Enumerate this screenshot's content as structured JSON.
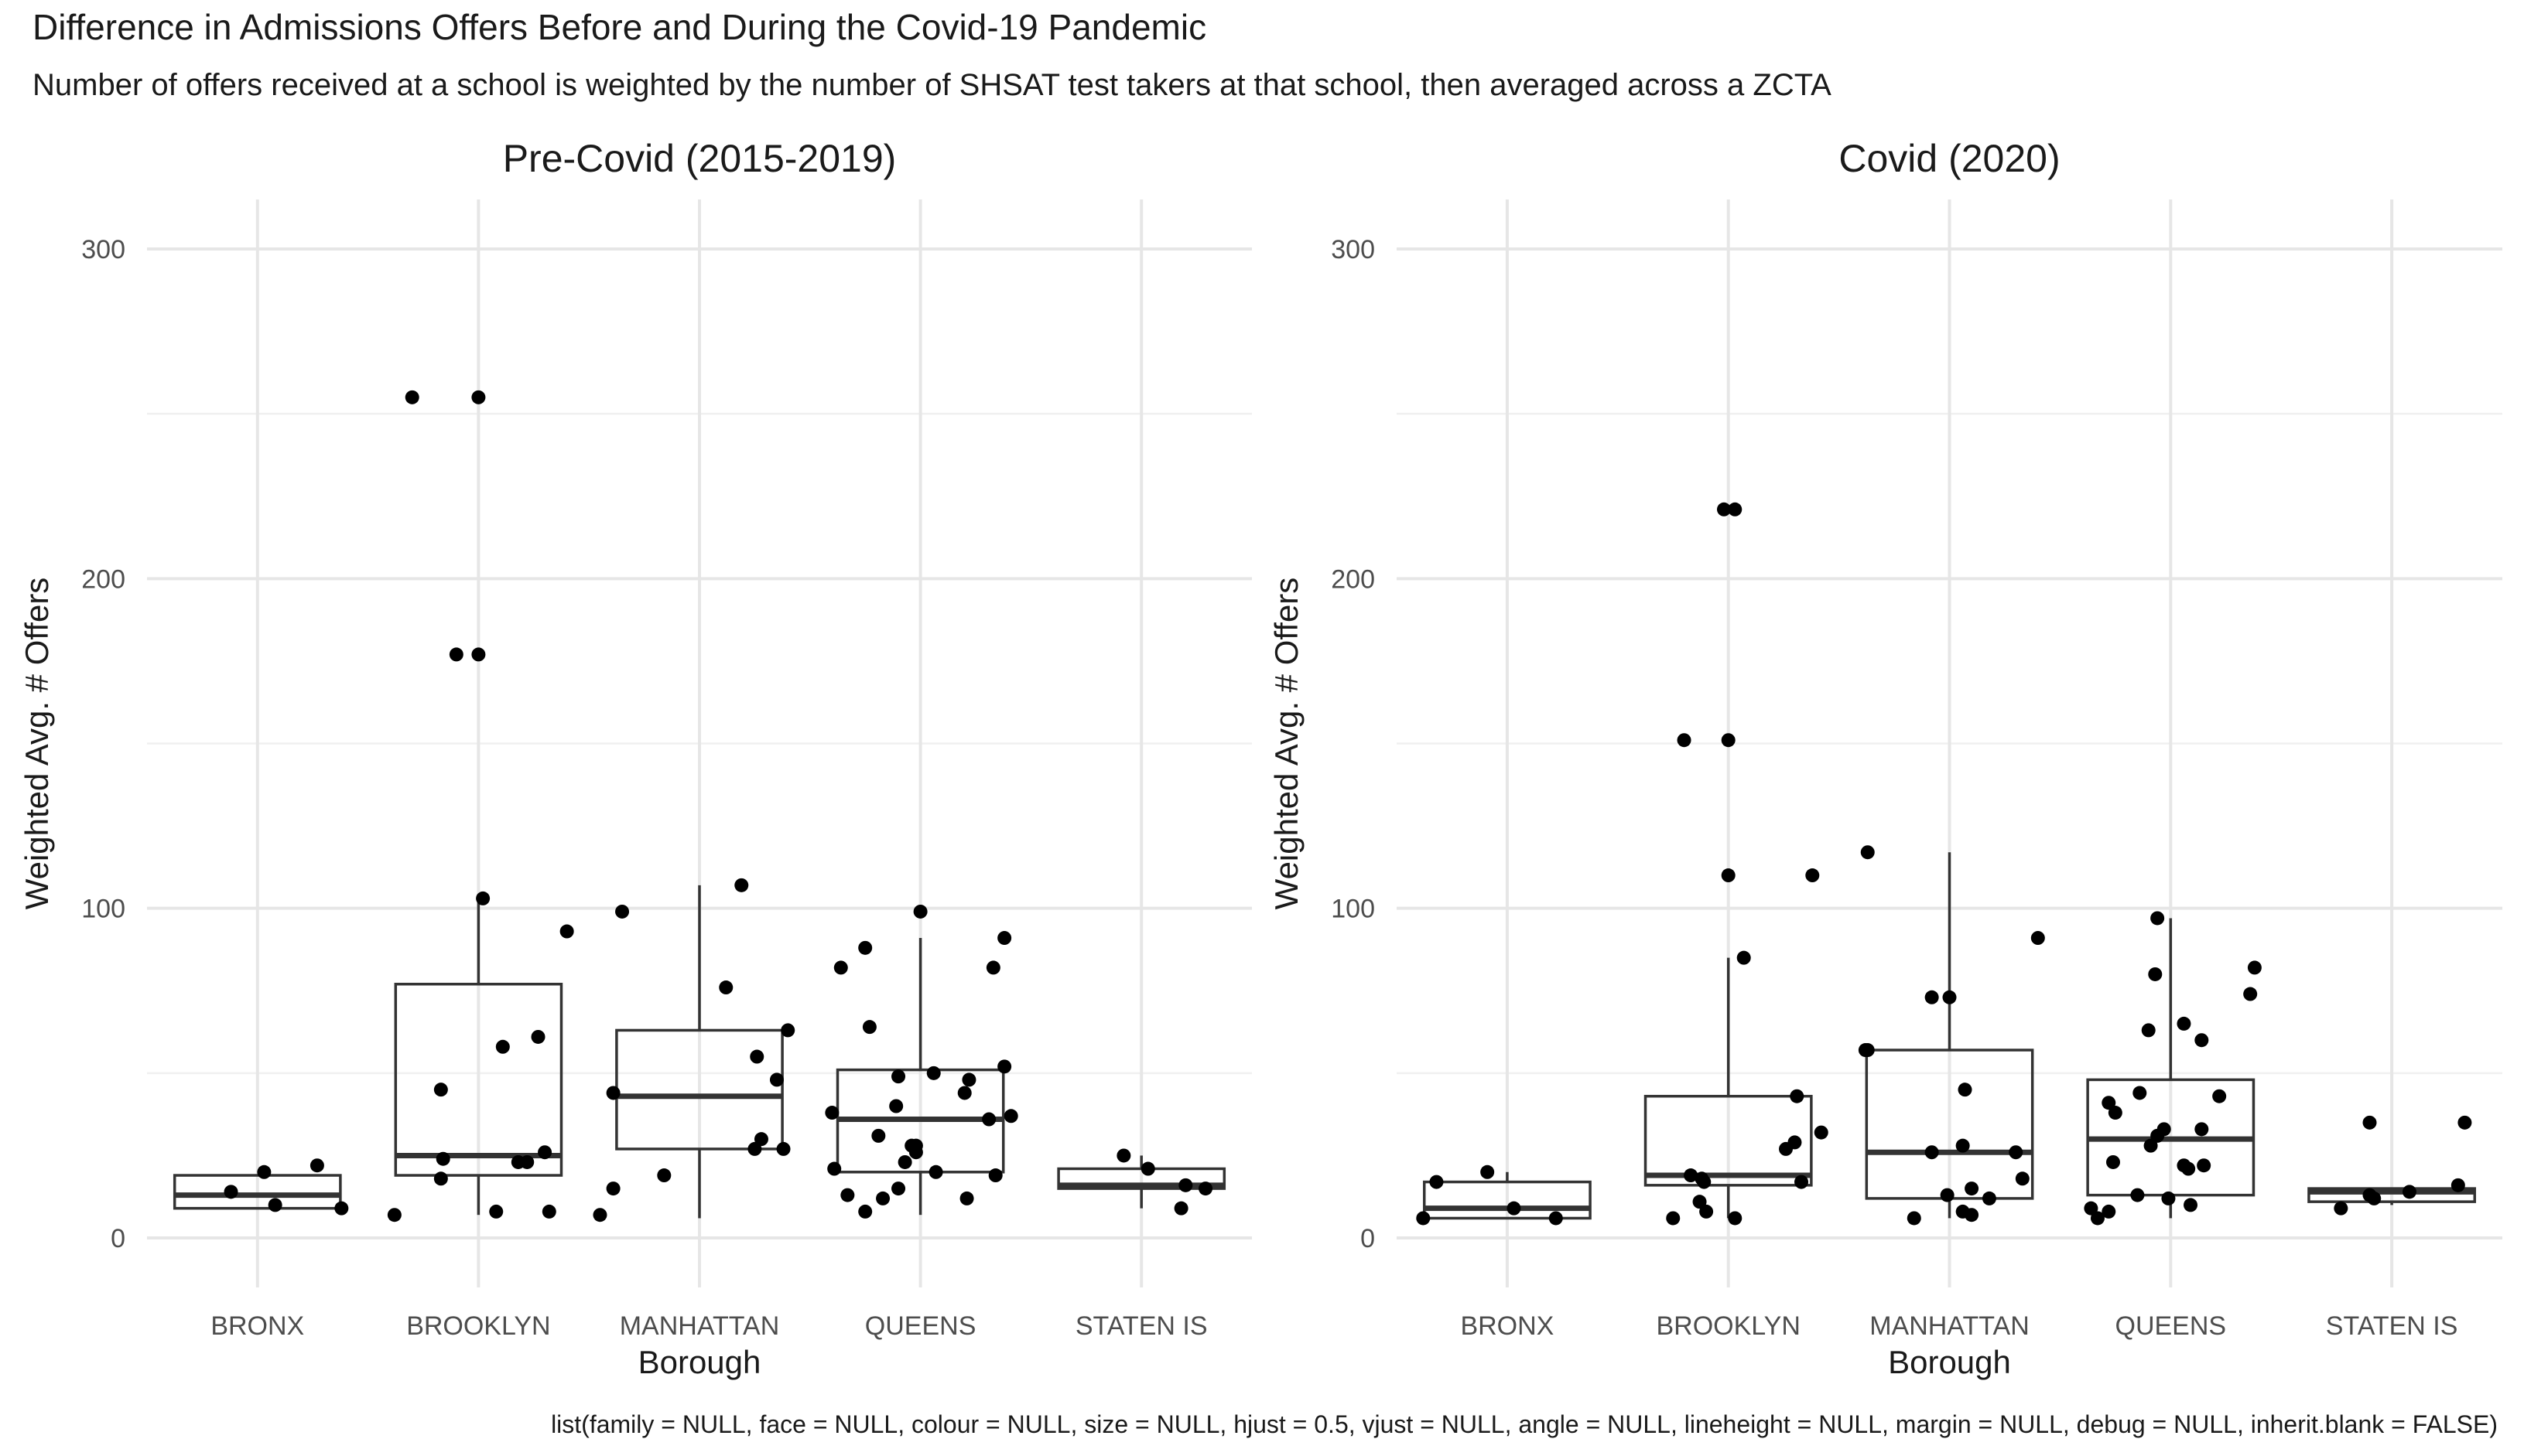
{
  "title": "Difference in Admissions Offers Before and During the Covid-19 Pandemic",
  "subtitle": "Number of offers received at a school is weighted by the number of SHSAT test takers at that school, then averaged across a ZCTA",
  "caption": "list(family = NULL, face = NULL, colour = NULL, size = NULL, hjust = 0.5, vjust = NULL, angle = NULL, lineheight = NULL, margin = NULL, debug = NULL, inherit.blank = FALSE)",
  "colors": {
    "points": "#000000",
    "box": "#333333",
    "grid": "#e6e6e6"
  },
  "chart_data": [
    {
      "type": "boxplot",
      "facet": "Pre-Covid (2015-2019)",
      "xlabel": "Borough",
      "ylabel": "Weighted Avg. # Offers",
      "categories": [
        "BRONX",
        "BROOKLYN",
        "MANHATTAN",
        "QUEENS",
        "STATEN IS"
      ],
      "ylim": [
        -15,
        315
      ],
      "yticks": [
        0,
        100,
        200,
        300
      ],
      "ytick_labels": [
        "0",
        "100",
        "200",
        "300"
      ],
      "grid": true,
      "boxes": [
        {
          "category": "BRONX",
          "lower_whisker": 9,
          "q1": 9,
          "median": 13,
          "q3": 19,
          "upper_whisker": 19
        },
        {
          "category": "BROOKLYN",
          "lower_whisker": 7,
          "q1": 19,
          "median": 25,
          "q3": 77,
          "upper_whisker": 103
        },
        {
          "category": "MANHATTAN",
          "lower_whisker": 6,
          "q1": 27,
          "median": 43,
          "q3": 63,
          "upper_whisker": 107
        },
        {
          "category": "QUEENS",
          "lower_whisker": 7,
          "q1": 20,
          "median": 36,
          "q3": 51,
          "upper_whisker": 91
        },
        {
          "category": "STATEN IS",
          "lower_whisker": 9,
          "q1": 15,
          "median": 16,
          "q3": 21,
          "upper_whisker": 25
        }
      ],
      "points": [
        {
          "category": "BRONX",
          "values": [
            20,
            14,
            10,
            22,
            9
          ],
          "jitter": [
            0.03,
            -0.12,
            0.08,
            0.27,
            0.38
          ]
        },
        {
          "category": "BROOKLYN",
          "values": [
            255,
            255,
            177,
            177,
            103,
            93,
            61,
            58,
            45,
            26,
            24,
            23,
            23,
            18,
            8,
            8,
            7
          ],
          "jitter": [
            -0.3,
            0.0,
            -0.1,
            0.0,
            0.02,
            0.4,
            0.27,
            0.11,
            -0.17,
            0.3,
            -0.16,
            0.18,
            0.22,
            -0.17,
            0.08,
            0.32,
            -0.38
          ]
        },
        {
          "category": "MANHATTAN",
          "values": [
            107,
            99,
            76,
            63,
            55,
            48,
            44,
            30,
            27,
            27,
            19,
            15,
            7
          ],
          "jitter": [
            0.19,
            -0.35,
            0.12,
            0.4,
            0.26,
            0.35,
            -0.39,
            0.28,
            0.25,
            0.38,
            -0.16,
            -0.39,
            -0.45
          ]
        },
        {
          "category": "QUEENS",
          "values": [
            99,
            91,
            88,
            82,
            82,
            64,
            52,
            50,
            49,
            48,
            44,
            40,
            38,
            37,
            36,
            31,
            28,
            28,
            26,
            23,
            21,
            20,
            19,
            15,
            13,
            12,
            12,
            8
          ],
          "jitter": [
            0.0,
            0.38,
            -0.25,
            -0.36,
            0.33,
            -0.23,
            0.38,
            0.06,
            -0.1,
            0.22,
            0.2,
            -0.11,
            -0.4,
            0.41,
            0.31,
            -0.19,
            -0.04,
            -0.02,
            -0.02,
            -0.07,
            -0.39,
            0.07,
            0.34,
            -0.1,
            -0.33,
            -0.17,
            0.21,
            -0.25
          ]
        },
        {
          "category": "STATEN IS",
          "values": [
            25,
            21,
            16,
            15,
            9
          ],
          "jitter": [
            -0.08,
            0.03,
            0.2,
            0.29,
            0.18
          ]
        }
      ]
    },
    {
      "type": "boxplot",
      "facet": "Covid (2020)",
      "xlabel": "Borough",
      "ylabel": "Weighted Avg. # Offers",
      "categories": [
        "BRONX",
        "BROOKLYN",
        "MANHATTAN",
        "QUEENS",
        "STATEN IS"
      ],
      "ylim": [
        -15,
        315
      ],
      "yticks": [
        0,
        100,
        200,
        300
      ],
      "ytick_labels": [
        "0",
        "100",
        "200",
        "300"
      ],
      "grid": true,
      "boxes": [
        {
          "category": "BRONX",
          "lower_whisker": 6,
          "q1": 6,
          "median": 9,
          "q3": 17,
          "upper_whisker": 20
        },
        {
          "category": "BROOKLYN",
          "lower_whisker": 6,
          "q1": 16,
          "median": 19,
          "q3": 43,
          "upper_whisker": 85
        },
        {
          "category": "MANHATTAN",
          "lower_whisker": 6,
          "q1": 12,
          "median": 26,
          "q3": 57,
          "upper_whisker": 117
        },
        {
          "category": "QUEENS",
          "lower_whisker": 6,
          "q1": 13,
          "median": 30,
          "q3": 48,
          "upper_whisker": 97
        },
        {
          "category": "STATEN IS",
          "lower_whisker": 10,
          "q1": 11,
          "median": 14,
          "q3": 15,
          "upper_whisker": 15
        }
      ],
      "points": [
        {
          "category": "BRONX",
          "values": [
            20,
            17,
            9,
            6,
            6
          ],
          "jitter": [
            -0.09,
            -0.32,
            0.03,
            0.22,
            -0.38
          ]
        },
        {
          "category": "BROOKLYN",
          "values": [
            221,
            221,
            151,
            151,
            110,
            110,
            85,
            43,
            32,
            29,
            27,
            19,
            18,
            17,
            17,
            11,
            8,
            6,
            6
          ],
          "jitter": [
            -0.02,
            0.03,
            -0.2,
            0.0,
            0.0,
            0.38,
            0.07,
            0.31,
            0.42,
            0.3,
            0.26,
            -0.17,
            -0.12,
            0.33,
            -0.11,
            -0.13,
            -0.1,
            -0.25,
            0.03
          ]
        },
        {
          "category": "MANHATTAN",
          "values": [
            117,
            91,
            73,
            73,
            57,
            57,
            45,
            28,
            26,
            26,
            18,
            15,
            13,
            12,
            8,
            7,
            6
          ],
          "jitter": [
            -0.37,
            0.4,
            0.0,
            -0.08,
            -0.37,
            -0.38,
            0.07,
            0.06,
            -0.08,
            0.3,
            0.33,
            0.1,
            -0.01,
            0.18,
            0.06,
            0.1,
            -0.16
          ]
        },
        {
          "category": "QUEENS",
          "values": [
            97,
            82,
            80,
            74,
            65,
            63,
            60,
            44,
            43,
            41,
            38,
            33,
            33,
            31,
            28,
            23,
            22,
            22,
            21,
            13,
            12,
            10,
            9,
            8,
            6
          ],
          "jitter": [
            -0.06,
            0.38,
            -0.07,
            0.36,
            0.06,
            -0.1,
            0.14,
            -0.14,
            0.22,
            -0.28,
            -0.25,
            -0.03,
            0.14,
            -0.06,
            -0.09,
            -0.26,
            0.15,
            0.06,
            0.08,
            -0.15,
            -0.01,
            0.09,
            -0.36,
            -0.28,
            -0.33
          ]
        },
        {
          "category": "STATEN IS",
          "values": [
            35,
            35,
            16,
            14,
            13,
            12,
            9
          ],
          "jitter": [
            -0.1,
            0.33,
            0.3,
            0.08,
            -0.1,
            -0.08,
            -0.23
          ]
        }
      ]
    }
  ]
}
